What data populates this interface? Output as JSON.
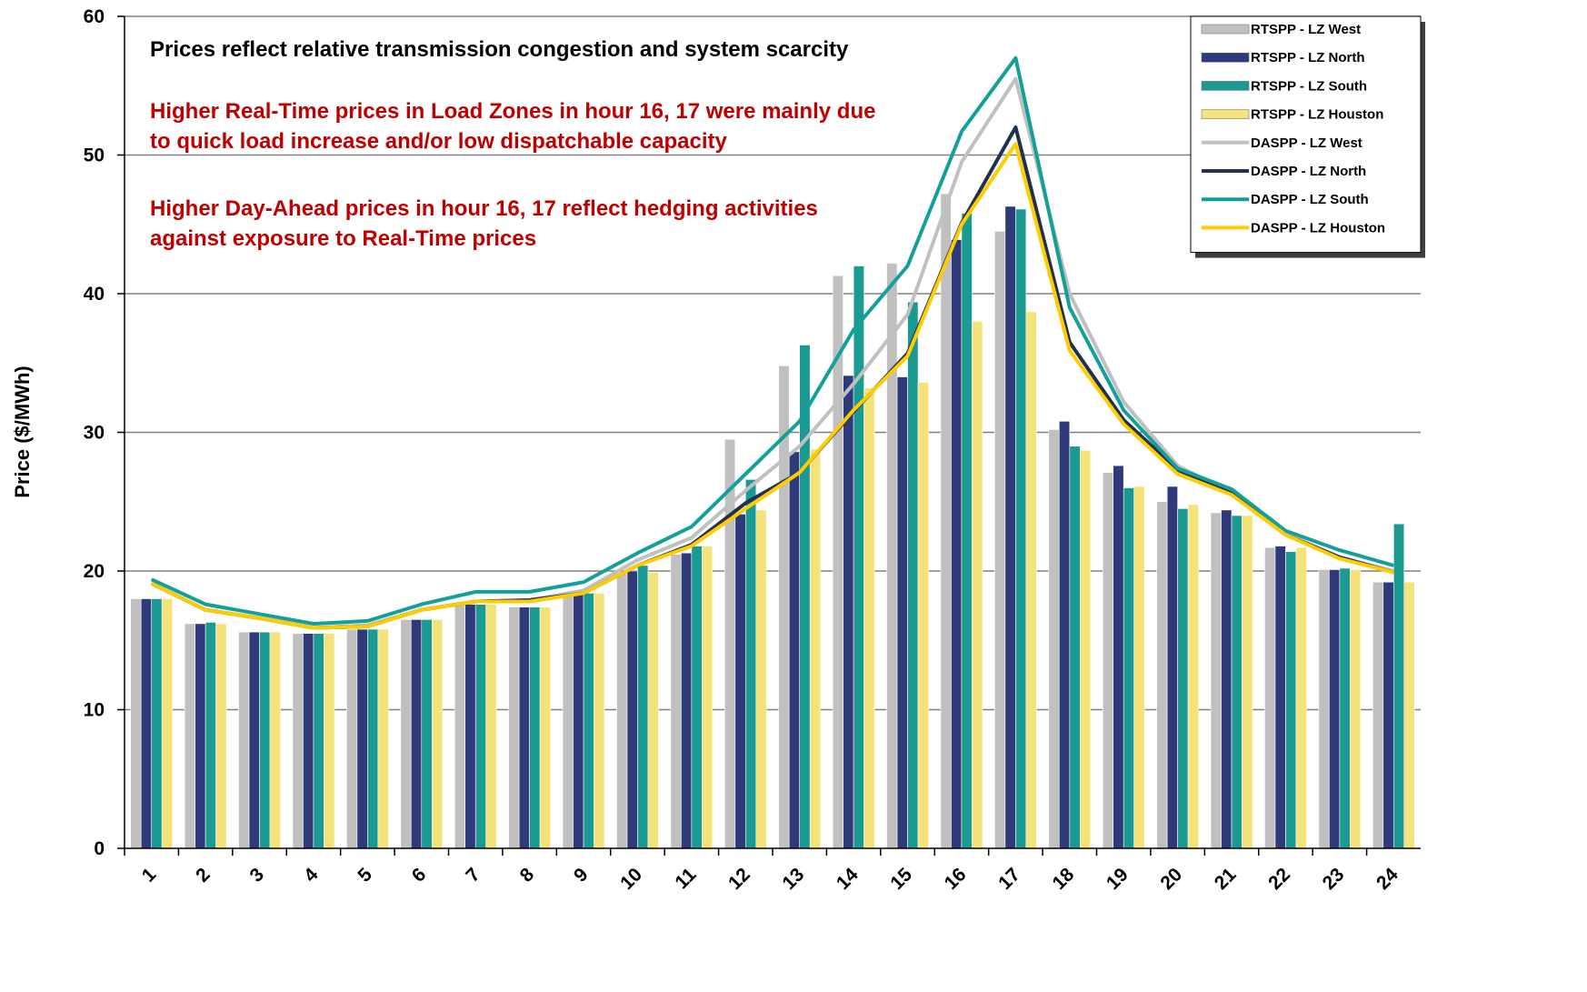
{
  "chart_data": {
    "type": "bar",
    "y_label": "Price ($/MWh)",
    "categories": [
      "1",
      "2",
      "3",
      "4",
      "5",
      "6",
      "7",
      "8",
      "9",
      "10",
      "11",
      "12",
      "13",
      "14",
      "15",
      "16",
      "17",
      "18",
      "19",
      "20",
      "21",
      "22",
      "23",
      "24"
    ],
    "ylim": [
      0,
      60
    ],
    "yticks": [
      0,
      10,
      20,
      30,
      40,
      50,
      60
    ],
    "grid": true,
    "legend": "top-right",
    "annotations": [
      {
        "lines": [
          "Prices reflect relative transmission congestion and system scarcity"
        ],
        "color": "#000000"
      },
      {
        "lines": [
          "Higher Real-Time prices in Load Zones in hour 16, 17 were mainly due",
          "to quick load increase and/or low dispatchable capacity"
        ],
        "color": "#c00000"
      },
      {
        "lines": [
          "Higher Day-Ahead prices in hour 16, 17 reflect hedging activities",
          "against exposure to Real-Time prices"
        ],
        "color": "#c00000"
      }
    ],
    "series": [
      {
        "name": "RTSPP - LZ West",
        "type": "bar",
        "color": "#c0c0c0",
        "values": [
          18.0,
          16.2,
          15.6,
          15.5,
          15.8,
          16.5,
          17.6,
          17.4,
          18.3,
          19.8,
          21.2,
          29.5,
          34.8,
          41.3,
          42.2,
          47.2,
          44.5,
          30.2,
          27.1,
          25.0,
          24.2,
          21.7,
          20.1,
          19.2
        ]
      },
      {
        "name": "RTSPP - LZ North",
        "type": "bar",
        "color": "#2e3a7a",
        "values": [
          18.0,
          16.2,
          15.6,
          15.5,
          15.8,
          16.5,
          17.6,
          17.4,
          18.3,
          20.0,
          21.3,
          24.1,
          28.6,
          34.1,
          34.0,
          43.9,
          46.3,
          30.8,
          27.6,
          26.1,
          24.4,
          21.8,
          20.1,
          19.2
        ]
      },
      {
        "name": "RTSPP - LZ South",
        "type": "bar",
        "color": "#1a9a92",
        "values": [
          18.0,
          16.3,
          15.6,
          15.5,
          15.8,
          16.5,
          17.6,
          17.4,
          18.4,
          20.4,
          21.8,
          26.6,
          36.3,
          42.0,
          39.4,
          45.8,
          46.1,
          29.0,
          26.0,
          24.5,
          24.0,
          21.4,
          20.2,
          23.4
        ]
      },
      {
        "name": "RTSPP - LZ Houston",
        "type": "bar",
        "color": "#f5e27a",
        "values": [
          18.0,
          16.2,
          15.6,
          15.5,
          15.8,
          16.5,
          17.6,
          17.4,
          18.4,
          19.9,
          21.8,
          24.4,
          28.8,
          33.2,
          33.6,
          38.0,
          38.7,
          28.7,
          26.1,
          24.8,
          24.0,
          21.7,
          20.1,
          19.2
        ]
      },
      {
        "name": "DASPP - LZ West",
        "type": "line",
        "color": "#c0c0c0",
        "values": [
          19.1,
          17.2,
          16.6,
          15.9,
          16.1,
          17.2,
          17.8,
          17.9,
          18.6,
          20.8,
          22.4,
          25.8,
          29.0,
          33.5,
          38.5,
          49.5,
          55.5,
          40.0,
          32.2,
          27.6,
          25.6,
          22.7,
          21.0,
          20.0
        ]
      },
      {
        "name": "DASPP - LZ North",
        "type": "line",
        "color": "#1f3050",
        "values": [
          19.1,
          17.2,
          16.6,
          15.9,
          16.0,
          17.2,
          17.8,
          17.9,
          18.4,
          20.4,
          21.9,
          24.9,
          27.1,
          31.5,
          35.7,
          45.1,
          52.0,
          36.5,
          30.9,
          27.3,
          25.6,
          22.6,
          21.0,
          19.9
        ]
      },
      {
        "name": "DASPP - LZ South",
        "type": "line",
        "color": "#14a09a",
        "values": [
          19.4,
          17.6,
          16.9,
          16.2,
          16.4,
          17.6,
          18.5,
          18.5,
          19.2,
          21.3,
          23.2,
          27.0,
          30.8,
          37.4,
          42.0,
          51.7,
          57.0,
          39.0,
          31.6,
          27.4,
          25.9,
          22.9,
          21.5,
          20.4
        ]
      },
      {
        "name": "DASPP - LZ Houston",
        "type": "line",
        "color": "#ffcc00",
        "values": [
          19.1,
          17.2,
          16.6,
          15.9,
          16.0,
          17.2,
          17.8,
          17.8,
          18.4,
          20.4,
          21.8,
          24.5,
          27.1,
          31.6,
          35.5,
          45.0,
          50.8,
          35.9,
          30.6,
          27.0,
          25.5,
          22.6,
          20.9,
          19.9
        ]
      }
    ]
  }
}
